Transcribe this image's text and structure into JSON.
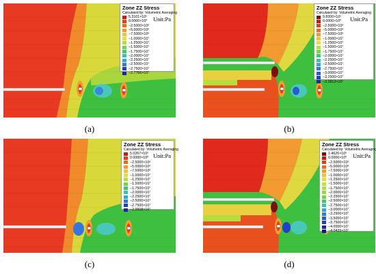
{
  "panels": [
    {
      "label": "(a)",
      "legend": {
        "title": "Zone ZZ Stress",
        "subtitle": "Calculated by: Volumetric Averaging",
        "unit": "Unit:Pa",
        "entries": [
          "5.3101×10⁵",
          "0.0000×10⁰",
          "−2.5000×10⁶",
          "−5.0000×10⁶",
          "−7.5000×10⁶",
          "−1.0000×10⁷",
          "−1.2500×10⁷",
          "−1.5000×10⁷",
          "−1.7500×10⁷",
          "−2.0000×10⁷",
          "−2.2500×10⁷",
          "−2.5000×10⁷",
          "−2.7500×10⁷",
          "−2.7766×10⁷"
        ],
        "colors": [
          "#cc1a10",
          "#e0401a",
          "#ee6a1e",
          "#f39a28",
          "#f2c23a",
          "#e2e040",
          "#b2df3e",
          "#76d44a",
          "#44c66a",
          "#3ac0ac",
          "#36a6d8",
          "#3476de",
          "#2040c8",
          "#1a28a8"
        ]
      }
    },
    {
      "label": "(b)",
      "legend": {
        "title": "Zone ZZ Stress",
        "subtitle": "Calculated by: Volumetric Averaging",
        "unit": "Unit:Pa",
        "entries": [
          "9.8200×10⁵",
          "0.0000×10⁰",
          "−2.5000×10⁶",
          "−5.0000×10⁶",
          "−7.5000×10⁶",
          "−1.0000×10⁷",
          "−1.2500×10⁷",
          "−1.5000×10⁷",
          "−1.7500×10⁷",
          "−2.0000×10⁷",
          "−2.2500×10⁷",
          "−2.5000×10⁷",
          "−2.7500×10⁷",
          "−3.0000×10⁷",
          "−3.2500×10⁷",
          "−3.2813×10⁷"
        ],
        "colors": [
          "#7a1010",
          "#cc1a10",
          "#e0401a",
          "#ee6a1e",
          "#f39a28",
          "#f2c23a",
          "#e2e040",
          "#b2df3e",
          "#76d44a",
          "#44c66a",
          "#3ac0ac",
          "#36a6d8",
          "#3476de",
          "#2a5ad0",
          "#2040c8",
          "#1a28a8"
        ]
      }
    },
    {
      "label": "(c)",
      "legend": {
        "title": "Zone ZZ Stress",
        "subtitle": "Calculated by: Volumetric Averaging",
        "unit": "Unit:Pa",
        "entries": [
          "5.0267×10⁵",
          "0.0000×10⁰",
          "−2.5000×10⁶",
          "−5.0000×10⁶",
          "−7.5000×10⁶",
          "−1.0000×10⁷",
          "−1.2500×10⁷",
          "−1.5000×10⁷",
          "−1.7500×10⁷",
          "−2.0000×10⁷",
          "−2.2500×10⁷",
          "−2.5000×10⁷",
          "−2.7500×10⁷",
          "−2.9508×10⁷"
        ],
        "colors": [
          "#cc1a10",
          "#e0401a",
          "#ee6a1e",
          "#f39a28",
          "#f2c23a",
          "#e2e040",
          "#b2df3e",
          "#76d44a",
          "#44c66a",
          "#3ac0ac",
          "#36a6d8",
          "#3476de",
          "#2040c8",
          "#1a28a8"
        ]
      }
    },
    {
      "label": "(d)",
      "legend": {
        "title": "Zone ZZ Stress",
        "subtitle": "Calculated by: Volumetric Averaging",
        "unit": "Unit:Pa",
        "entries": [
          "1.4626×10⁶",
          "0.0000×10⁰",
          "−2.5000×10⁶",
          "−5.0000×10⁶",
          "−7.5000×10⁶",
          "−1.0000×10⁷",
          "−1.2500×10⁷",
          "−1.5000×10⁷",
          "−1.7500×10⁷",
          "−2.0000×10⁷",
          "−2.2500×10⁷",
          "−2.5000×10⁷",
          "−2.7500×10⁷",
          "−3.0000×10⁷",
          "−3.2500×10⁷",
          "−3.5000×10⁷",
          "−3.7500×10⁷",
          "−4.0000×10⁷",
          "−4.0439×10⁷"
        ],
        "colors": [
          "#7a1010",
          "#cc1a10",
          "#e0401a",
          "#ee6a1e",
          "#f39a28",
          "#f2c23a",
          "#e2e040",
          "#c8e03e",
          "#b2df3e",
          "#92d944",
          "#76d44a",
          "#44c66a",
          "#3ac0ac",
          "#36a6d8",
          "#3476de",
          "#2a5ad0",
          "#2040c8",
          "#1a28a8",
          "#101888"
        ]
      }
    }
  ]
}
